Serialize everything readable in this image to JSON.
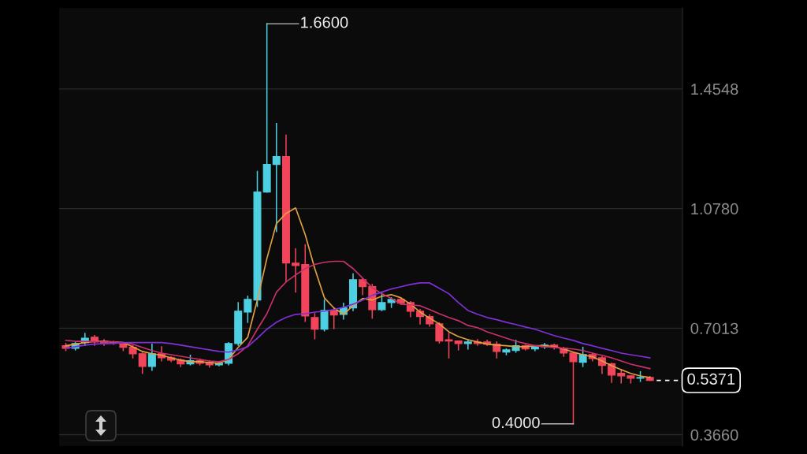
{
  "chart_data": {
    "type": "candlestick",
    "categories": [
      null,
      null,
      null,
      null,
      null,
      null,
      null,
      null,
      null,
      null,
      null,
      null,
      null,
      null,
      null,
      null,
      null,
      null,
      null,
      null,
      null,
      null,
      null,
      null,
      null,
      null,
      null,
      null,
      null,
      null,
      null,
      null,
      null,
      null,
      null,
      null,
      null,
      null,
      null,
      null,
      null,
      null,
      null,
      null,
      null,
      null,
      null,
      null,
      null,
      null,
      null,
      null,
      null,
      null,
      null,
      null,
      null,
      null,
      null,
      null,
      null,
      null
    ],
    "ohlc": [
      [
        0.646,
        0.653,
        0.631,
        0.638
      ],
      [
        0.638,
        0.656,
        0.633,
        0.653
      ],
      [
        0.656,
        0.685,
        0.648,
        0.67
      ],
      [
        0.673,
        0.678,
        0.648,
        0.658
      ],
      [
        0.66,
        0.665,
        0.648,
        0.653
      ],
      [
        0.658,
        0.66,
        0.651,
        0.656
      ],
      [
        0.651,
        0.653,
        0.631,
        0.641
      ],
      [
        0.641,
        0.646,
        0.608,
        0.621
      ],
      [
        0.621,
        0.623,
        0.559,
        0.581
      ],
      [
        0.581,
        0.651,
        0.569,
        0.621
      ],
      [
        0.621,
        0.643,
        0.599,
        0.608
      ],
      [
        0.608,
        0.611,
        0.596,
        0.601
      ],
      [
        0.601,
        0.604,
        0.581,
        0.589
      ],
      [
        0.589,
        0.616,
        0.586,
        0.599
      ],
      [
        0.599,
        0.604,
        0.586,
        0.591
      ],
      [
        0.594,
        0.599,
        0.579,
        0.586
      ],
      [
        0.586,
        0.594,
        0.583,
        0.591
      ],
      [
        0.591,
        0.656,
        0.586,
        0.653
      ],
      [
        0.653,
        0.782,
        0.648,
        0.755
      ],
      [
        0.752,
        0.802,
        0.72,
        0.792
      ],
      [
        0.79,
        1.195,
        0.77,
        1.13
      ],
      [
        1.13,
        1.66,
        1.13,
        1.217
      ],
      [
        1.217,
        1.346,
        1.006,
        1.242
      ],
      [
        1.242,
        1.309,
        0.847,
        0.907
      ],
      [
        0.906,
        0.951,
        0.815,
        0.899
      ],
      [
        0.902,
        0.964,
        0.723,
        0.74
      ],
      [
        0.735,
        0.747,
        0.668,
        0.698
      ],
      [
        0.698,
        0.79,
        0.693,
        0.757
      ],
      [
        0.757,
        0.765,
        0.7,
        0.743
      ],
      [
        0.745,
        0.78,
        0.73,
        0.765
      ],
      [
        0.765,
        0.872,
        0.757,
        0.854
      ],
      [
        0.854,
        0.857,
        0.807,
        0.832
      ],
      [
        0.832,
        0.839,
        0.733,
        0.76
      ],
      [
        0.76,
        0.815,
        0.757,
        0.782
      ],
      [
        0.782,
        0.797,
        0.767,
        0.792
      ],
      [
        0.792,
        0.797,
        0.777,
        0.78
      ],
      [
        0.782,
        0.785,
        0.738,
        0.755
      ],
      [
        0.755,
        0.76,
        0.715,
        0.738
      ],
      [
        0.738,
        0.743,
        0.708,
        0.715
      ],
      [
        0.715,
        0.718,
        0.655,
        0.661
      ],
      [
        0.665,
        0.685,
        0.608,
        0.661
      ],
      [
        0.661,
        0.661,
        0.633,
        0.653
      ],
      [
        0.653,
        0.665,
        0.636,
        0.658
      ],
      [
        0.658,
        0.665,
        0.648,
        0.653
      ],
      [
        0.658,
        0.663,
        0.648,
        0.651
      ],
      [
        0.651,
        0.658,
        0.608,
        0.628
      ],
      [
        0.626,
        0.636,
        0.618,
        0.633
      ],
      [
        0.631,
        0.663,
        0.626,
        0.646
      ],
      [
        0.646,
        0.648,
        0.633,
        0.636
      ],
      [
        0.636,
        0.646,
        0.631,
        0.643
      ],
      [
        0.643,
        0.653,
        0.638,
        0.648
      ],
      [
        0.648,
        0.651,
        0.636,
        0.641
      ],
      [
        0.638,
        0.641,
        0.613,
        0.623
      ],
      [
        0.623,
        0.626,
        0.4,
        0.596
      ],
      [
        0.594,
        0.641,
        0.581,
        0.618
      ],
      [
        0.618,
        0.623,
        0.599,
        0.606
      ],
      [
        0.608,
        0.611,
        0.559,
        0.584
      ],
      [
        0.589,
        0.591,
        0.531,
        0.554
      ],
      [
        0.559,
        0.569,
        0.529,
        0.551
      ],
      [
        0.551,
        0.551,
        0.529,
        0.544
      ],
      [
        0.544,
        0.564,
        0.534,
        0.546
      ],
      [
        0.546,
        0.549,
        0.5371,
        0.5371
      ]
    ],
    "colors": [
      "#f2455b",
      "#4dd0e1",
      "#4dd0e1",
      "#f2455b",
      "#f2455b",
      "#f2455b",
      "#f2455b",
      "#f2455b",
      "#f2455b",
      "#4dd0e1",
      "#f2455b",
      "#f2455b",
      "#f2455b",
      "#4dd0e1",
      "#f2455b",
      "#f2455b",
      "#4dd0e1",
      "#4dd0e1",
      "#4dd0e1",
      "#4dd0e1",
      "#4dd0e1",
      "#4dd0e1",
      "#4dd0e1",
      "#f2455b",
      "#f2455b",
      "#f2455b",
      "#f2455b",
      "#4dd0e1",
      "#f2455b",
      "#4dd0e1",
      "#4dd0e1",
      "#f2455b",
      "#f2455b",
      "#4dd0e1",
      "#4dd0e1",
      "#f2455b",
      "#f2455b",
      "#f2455b",
      "#f2455b",
      "#f2455b",
      "#f2455b",
      "#f2455b",
      "#4dd0e1",
      "#f2455b",
      "#f2455b",
      "#f2455b",
      "#4dd0e1",
      "#4dd0e1",
      "#f2455b",
      "#4dd0e1",
      "#4dd0e1",
      "#f2455b",
      "#f2455b",
      "#f2455b",
      "#4dd0e1",
      "#f2455b",
      "#f2455b",
      "#f2455b",
      "#f2455b",
      "#f2455b",
      "#4dd0e1",
      "#f2455b"
    ],
    "series": [
      {
        "type": "line",
        "color": "#e0a040",
        "values": [
          0.646,
          0.651,
          0.656,
          0.66,
          0.66,
          0.658,
          0.656,
          0.643,
          0.628,
          0.621,
          0.616,
          0.608,
          0.601,
          0.596,
          0.596,
          0.593,
          0.591,
          0.603,
          0.641,
          0.673,
          0.79,
          0.921,
          1.031,
          1.063,
          1.08,
          0.996,
          0.889,
          0.797,
          0.765,
          0.745,
          0.772,
          0.795,
          0.79,
          0.802,
          0.807,
          0.797,
          0.777,
          0.752,
          0.733,
          0.715,
          0.69,
          0.675,
          0.665,
          0.658,
          0.651,
          0.648,
          0.646,
          0.643,
          0.643,
          0.646,
          0.646,
          0.643,
          0.636,
          0.626,
          0.618,
          0.611,
          0.598,
          0.583,
          0.571,
          0.559,
          0.551,
          0.546
        ]
      },
      {
        "type": "line",
        "color": "#c8306e",
        "values": [
          0.663,
          0.66,
          0.66,
          0.66,
          0.658,
          0.658,
          0.656,
          0.651,
          0.641,
          0.631,
          0.623,
          0.618,
          0.613,
          0.608,
          0.603,
          0.598,
          0.596,
          0.603,
          0.621,
          0.646,
          0.698,
          0.747,
          0.815,
          0.847,
          0.869,
          0.889,
          0.902,
          0.909,
          0.912,
          0.912,
          0.889,
          0.859,
          0.829,
          0.81,
          0.795,
          0.777,
          0.775,
          0.772,
          0.76,
          0.747,
          0.735,
          0.725,
          0.71,
          0.703,
          0.69,
          0.68,
          0.67,
          0.66,
          0.653,
          0.646,
          0.643,
          0.641,
          0.638,
          0.636,
          0.631,
          0.623,
          0.616,
          0.608,
          0.598,
          0.588,
          0.581,
          0.574
        ]
      },
      {
        "type": "line",
        "color": "#8030d8",
        "values": [
          0.638,
          0.643,
          0.648,
          0.651,
          0.653,
          0.653,
          0.656,
          0.656,
          0.656,
          0.656,
          0.656,
          0.653,
          0.648,
          0.643,
          0.638,
          0.633,
          0.628,
          0.626,
          0.633,
          0.643,
          0.67,
          0.698,
          0.72,
          0.735,
          0.745,
          0.747,
          0.752,
          0.755,
          0.76,
          0.767,
          0.777,
          0.79,
          0.805,
          0.815,
          0.825,
          0.832,
          0.839,
          0.844,
          0.844,
          0.827,
          0.81,
          0.782,
          0.757,
          0.745,
          0.735,
          0.728,
          0.72,
          0.713,
          0.705,
          0.698,
          0.688,
          0.678,
          0.67,
          0.663,
          0.653,
          0.646,
          0.638,
          0.631,
          0.623,
          0.618,
          0.613,
          0.608
        ]
      }
    ],
    "ylim": [
      0.33,
      1.71
    ],
    "yticks": [
      {
        "value": 0.366,
        "label": "0.3660"
      },
      0.7013,
      {
        "value": 1.078,
        "label": "1.0780"
      },
      1.4548
    ],
    "grid": "y",
    "tick_labels": "y",
    "annotations": [
      "1.6600",
      "0.4000"
    ],
    "ref_lines": [
      {
        "axis": "y",
        "value": 0.5371,
        "label": "0.5371",
        "color": "#ffffff",
        "line_style": "dashed"
      }
    ]
  }
}
